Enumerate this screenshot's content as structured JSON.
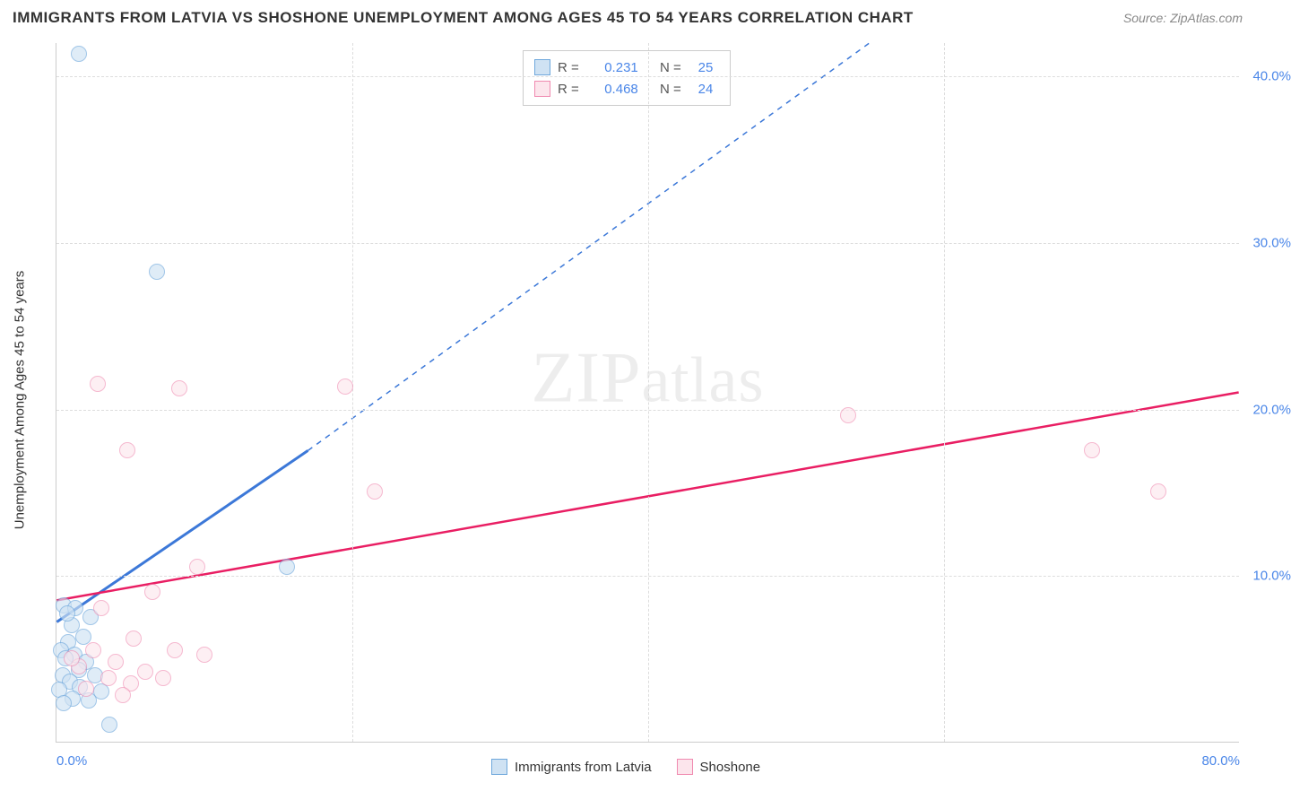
{
  "title": "IMMIGRANTS FROM LATVIA VS SHOSHONE UNEMPLOYMENT AMONG AGES 45 TO 54 YEARS CORRELATION CHART",
  "source": "Source: ZipAtlas.com",
  "ylabel": "Unemployment Among Ages 45 to 54 years",
  "watermark_a": "ZIP",
  "watermark_b": "atlas",
  "chart": {
    "type": "scatter",
    "xlim": [
      0,
      80
    ],
    "ylim": [
      0,
      42
    ],
    "ytick_values": [
      10,
      20,
      30,
      40
    ],
    "ytick_labels": [
      "10.0%",
      "20.0%",
      "30.0%",
      "40.0%"
    ],
    "xtick_values": [
      0,
      80
    ],
    "xtick_labels": [
      "0.0%",
      "80.0%"
    ],
    "xgrid_values": [
      20,
      40,
      60
    ],
    "background_color": "#ffffff",
    "grid_color": "#dddddd",
    "axis_color": "#cccccc",
    "axis_label_color": "#4a86e8",
    "series": [
      {
        "name": "Immigrants from Latvia",
        "key": "latvia",
        "fill": "#cfe2f3",
        "stroke": "#6fa8dc",
        "line_color": "#3c78d8",
        "marker_radius": 9,
        "marker_opacity": 0.65,
        "R": "0.231",
        "N": "25",
        "points": [
          [
            1.5,
            41.3
          ],
          [
            6.8,
            28.2
          ],
          [
            15.6,
            10.5
          ],
          [
            0.5,
            8.2
          ],
          [
            1.3,
            8.0
          ],
          [
            2.3,
            7.5
          ],
          [
            1.0,
            7.0
          ],
          [
            1.8,
            6.3
          ],
          [
            0.8,
            6.0
          ],
          [
            0.3,
            5.5
          ],
          [
            1.2,
            5.2
          ],
          [
            0.6,
            5.0
          ],
          [
            2.0,
            4.8
          ],
          [
            1.5,
            4.3
          ],
          [
            0.4,
            4.0
          ],
          [
            2.6,
            4.0
          ],
          [
            0.9,
            3.6
          ],
          [
            1.6,
            3.3
          ],
          [
            0.2,
            3.1
          ],
          [
            3.0,
            3.0
          ],
          [
            1.1,
            2.6
          ],
          [
            0.5,
            2.3
          ],
          [
            2.2,
            2.5
          ],
          [
            3.6,
            1.0
          ],
          [
            0.7,
            7.7
          ]
        ],
        "trend": {
          "x1": 0,
          "y1": 7.2,
          "x2": 17,
          "y2": 17.5,
          "dash_to_x": 55,
          "dash_to_y": 42
        }
      },
      {
        "name": "Shoshone",
        "key": "shoshone",
        "fill": "#fce5ec",
        "stroke": "#f08ab0",
        "line_color": "#e91e63",
        "marker_radius": 9,
        "marker_opacity": 0.6,
        "R": "0.468",
        "N": "24",
        "points": [
          [
            2.8,
            21.5
          ],
          [
            8.3,
            21.2
          ],
          [
            19.5,
            21.3
          ],
          [
            4.8,
            17.5
          ],
          [
            21.5,
            15.0
          ],
          [
            53.5,
            19.6
          ],
          [
            70.0,
            17.5
          ],
          [
            74.5,
            15.0
          ],
          [
            9.5,
            10.5
          ],
          [
            6.5,
            9.0
          ],
          [
            3.0,
            8.0
          ],
          [
            5.2,
            6.2
          ],
          [
            8.0,
            5.5
          ],
          [
            10.0,
            5.2
          ],
          [
            4.0,
            4.8
          ],
          [
            2.5,
            5.5
          ],
          [
            6.0,
            4.2
          ],
          [
            1.5,
            4.5
          ],
          [
            3.5,
            3.8
          ],
          [
            5.0,
            3.5
          ],
          [
            7.2,
            3.8
          ],
          [
            2.0,
            3.2
          ],
          [
            4.5,
            2.8
          ],
          [
            1.0,
            5.0
          ]
        ],
        "trend": {
          "x1": 0,
          "y1": 8.5,
          "x2": 80,
          "y2": 21.0
        }
      }
    ]
  },
  "legend_bottom": {
    "items": [
      {
        "label": "Immigrants from Latvia",
        "fill": "#cfe2f3",
        "stroke": "#6fa8dc"
      },
      {
        "label": "Shoshone",
        "fill": "#fce5ec",
        "stroke": "#f08ab0"
      }
    ]
  }
}
